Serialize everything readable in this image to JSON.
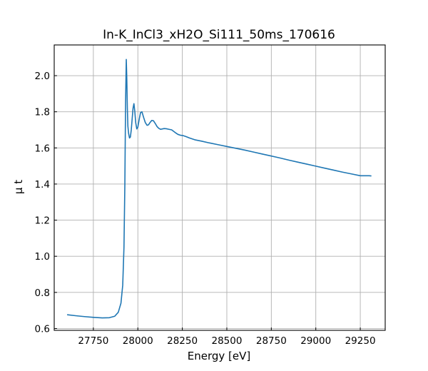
{
  "chart_data": {
    "type": "line",
    "title": "In-K_InCl3_xH2O_Si111_50ms_170616",
    "xlabel": "Energy [eV]",
    "ylabel": "μ t",
    "xlim": [
      27530,
      29390
    ],
    "ylim": [
      0.59,
      2.17
    ],
    "xticks": [
      27750,
      28000,
      28250,
      28500,
      28750,
      29000,
      29250
    ],
    "yticks": [
      0.6,
      0.8,
      1.0,
      1.2,
      1.4,
      1.6,
      1.8,
      2.0
    ],
    "xtick_labels": [
      "27750",
      "28000",
      "28250",
      "28500",
      "28750",
      "29000",
      "29250"
    ],
    "ytick_labels": [
      "0.6",
      "0.8",
      "1.0",
      "1.2",
      "1.4",
      "1.6",
      "1.8",
      "2.0"
    ],
    "grid": true,
    "color": "#1f77b4",
    "series": [
      {
        "x": [
          27605,
          27650,
          27700,
          27750,
          27800,
          27840,
          27870,
          27890,
          27905,
          27915,
          27922,
          27927,
          27931,
          27935,
          27938,
          27941,
          27944,
          27948,
          27953,
          27958,
          27963,
          27968,
          27973,
          27978,
          27983,
          27988,
          27994,
          28000,
          28008,
          28015,
          28023,
          28032,
          28042,
          28052,
          28060,
          28068,
          28078,
          28088,
          28098,
          28108,
          28118,
          28128,
          28138,
          28148,
          28160,
          28175,
          28190,
          28210,
          28225,
          28240,
          28255,
          28270,
          28290,
          28320,
          28360,
          28400,
          28450,
          28500,
          28550,
          28600,
          28650,
          28700,
          28750,
          28800,
          28850,
          28900,
          28950,
          29000,
          29050,
          29100,
          29150,
          29200,
          29250,
          29300,
          29310
        ],
        "y": [
          0.676,
          0.671,
          0.666,
          0.662,
          0.659,
          0.66,
          0.668,
          0.69,
          0.74,
          0.84,
          1.05,
          1.4,
          1.85,
          2.09,
          1.98,
          1.82,
          1.72,
          1.68,
          1.655,
          1.66,
          1.7,
          1.76,
          1.82,
          1.845,
          1.8,
          1.74,
          1.705,
          1.715,
          1.76,
          1.795,
          1.8,
          1.77,
          1.74,
          1.725,
          1.728,
          1.74,
          1.752,
          1.75,
          1.735,
          1.718,
          1.708,
          1.703,
          1.705,
          1.707,
          1.706,
          1.703,
          1.7,
          1.685,
          1.675,
          1.67,
          1.668,
          1.663,
          1.655,
          1.645,
          1.637,
          1.628,
          1.618,
          1.608,
          1.598,
          1.588,
          1.577,
          1.566,
          1.555,
          1.544,
          1.532,
          1.521,
          1.51,
          1.499,
          1.488,
          1.477,
          1.466,
          1.456,
          1.446,
          1.446,
          1.445
        ]
      }
    ]
  }
}
